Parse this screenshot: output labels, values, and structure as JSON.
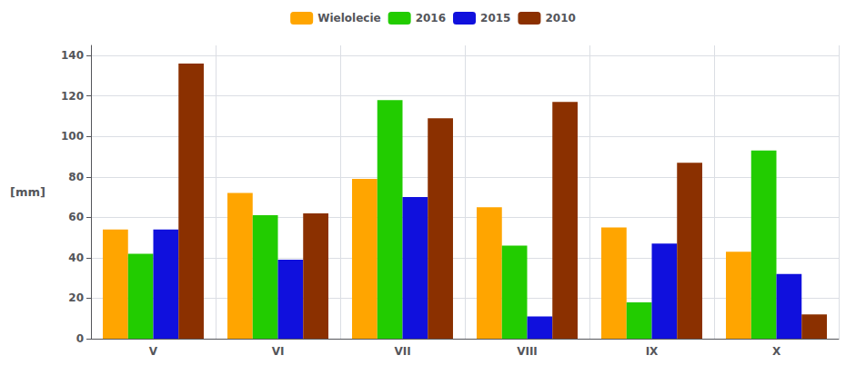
{
  "chart_data": {
    "type": "bar",
    "categories": [
      "V",
      "VI",
      "VII",
      "VIII",
      "IX",
      "X"
    ],
    "series": [
      {
        "name": "Wielolecie",
        "color": "#FFA500",
        "values": [
          54,
          72,
          79,
          65,
          55,
          43
        ]
      },
      {
        "name": "2016",
        "color": "#22CC00",
        "values": [
          42,
          61,
          118,
          46,
          18,
          93
        ]
      },
      {
        "name": "2015",
        "color": "#1010DD",
        "values": [
          54,
          39,
          70,
          11,
          47,
          32
        ]
      },
      {
        "name": "2010",
        "color": "#8B3000",
        "values": [
          136,
          62,
          109,
          117,
          87,
          12
        ]
      }
    ],
    "ylabel": "[mm]",
    "ylim": [
      0,
      145
    ],
    "yticks": [
      0,
      20,
      40,
      60,
      80,
      100,
      120,
      140
    ],
    "grid": true,
    "legend": "top"
  }
}
